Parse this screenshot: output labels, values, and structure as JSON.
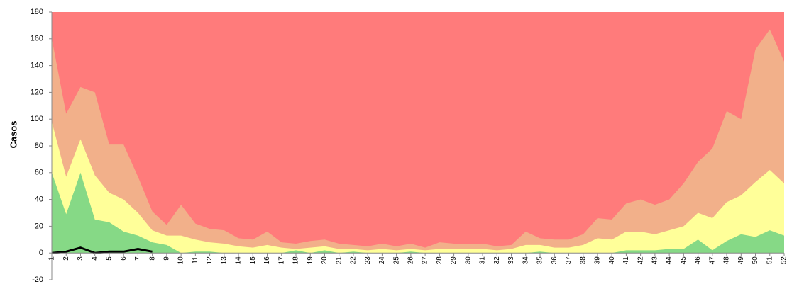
{
  "chart_data": {
    "type": "area",
    "y_label": "Casos",
    "categories": [
      "1",
      "2",
      "3",
      "4",
      "5",
      "6",
      "7",
      "8",
      "9",
      "10",
      "11",
      "12",
      "13",
      "14",
      "15",
      "16",
      "17",
      "18",
      "19",
      "20",
      "21",
      "22",
      "23",
      "24",
      "25",
      "26",
      "27",
      "28",
      "29",
      "30",
      "31",
      "32",
      "33",
      "34",
      "35",
      "36",
      "37",
      "38",
      "39",
      "40",
      "41",
      "42",
      "43",
      "44",
      "45",
      "46",
      "47",
      "48",
      "49",
      "50",
      "51",
      "52"
    ],
    "ylim": [
      -20,
      180
    ],
    "yticks": [
      -20,
      0,
      20,
      40,
      60,
      80,
      100,
      120,
      140,
      160,
      180
    ],
    "series": [
      {
        "color": "#ff7b7b",
        "values": [
          180,
          180,
          180,
          180,
          180,
          180,
          180,
          180,
          180,
          180,
          180,
          180,
          180,
          180,
          180,
          180,
          180,
          180,
          180,
          180,
          180,
          180,
          180,
          180,
          180,
          180,
          180,
          180,
          180,
          180,
          180,
          180,
          180,
          180,
          180,
          180,
          180,
          180,
          180,
          180,
          180,
          180,
          180,
          180,
          180,
          180,
          180,
          180,
          180,
          180,
          180,
          180
        ]
      },
      {
        "color": "#f2b08a",
        "values": [
          160,
          104,
          124,
          120,
          81,
          81,
          57,
          31,
          21,
          36,
          22,
          18,
          17,
          11,
          10,
          16,
          8,
          7,
          9,
          10,
          7,
          6,
          5,
          7,
          5,
          7,
          4,
          8,
          7,
          7,
          7,
          5,
          6,
          16,
          11,
          10,
          10,
          14,
          26,
          25,
          37,
          40,
          36,
          40,
          52,
          68,
          78,
          106,
          100,
          152,
          167,
          143
        ]
      },
      {
        "color": "#ffff99",
        "values": [
          98,
          57,
          85,
          58,
          45,
          40,
          30,
          17,
          13,
          13,
          10,
          8,
          7,
          5,
          4,
          6,
          4,
          3,
          4,
          5,
          3,
          3,
          2,
          3,
          2,
          3,
          2,
          3,
          3,
          3,
          3,
          2,
          3,
          6,
          6,
          4,
          4,
          6,
          11,
          10,
          16,
          16,
          14,
          17,
          20,
          30,
          26,
          38,
          43,
          53,
          62,
          52
        ]
      },
      {
        "color": "#86d986",
        "values": [
          60,
          29,
          60,
          25,
          23,
          16,
          13,
          8,
          6,
          0,
          1,
          1,
          0,
          0,
          0,
          0,
          0,
          2,
          0,
          2,
          0,
          1,
          0,
          0,
          0,
          1,
          0,
          0,
          0,
          0,
          0,
          0,
          0,
          0,
          1,
          0,
          0,
          0,
          0,
          0,
          2,
          2,
          2,
          3,
          3,
          10,
          2,
          9,
          14,
          12,
          17,
          13
        ]
      },
      {
        "type": "line",
        "color": "#000000",
        "values": [
          0,
          1,
          4,
          0,
          1,
          1,
          3,
          1,
          null,
          null,
          null,
          null,
          null,
          null,
          null,
          null,
          null,
          null,
          null,
          null,
          null,
          null,
          null,
          null,
          null,
          null,
          null,
          null,
          null,
          null,
          null,
          null,
          null,
          null,
          null,
          null,
          null,
          null,
          null,
          null,
          null,
          null,
          null,
          null,
          null,
          null,
          null,
          null,
          null,
          null,
          null,
          null
        ]
      }
    ]
  }
}
